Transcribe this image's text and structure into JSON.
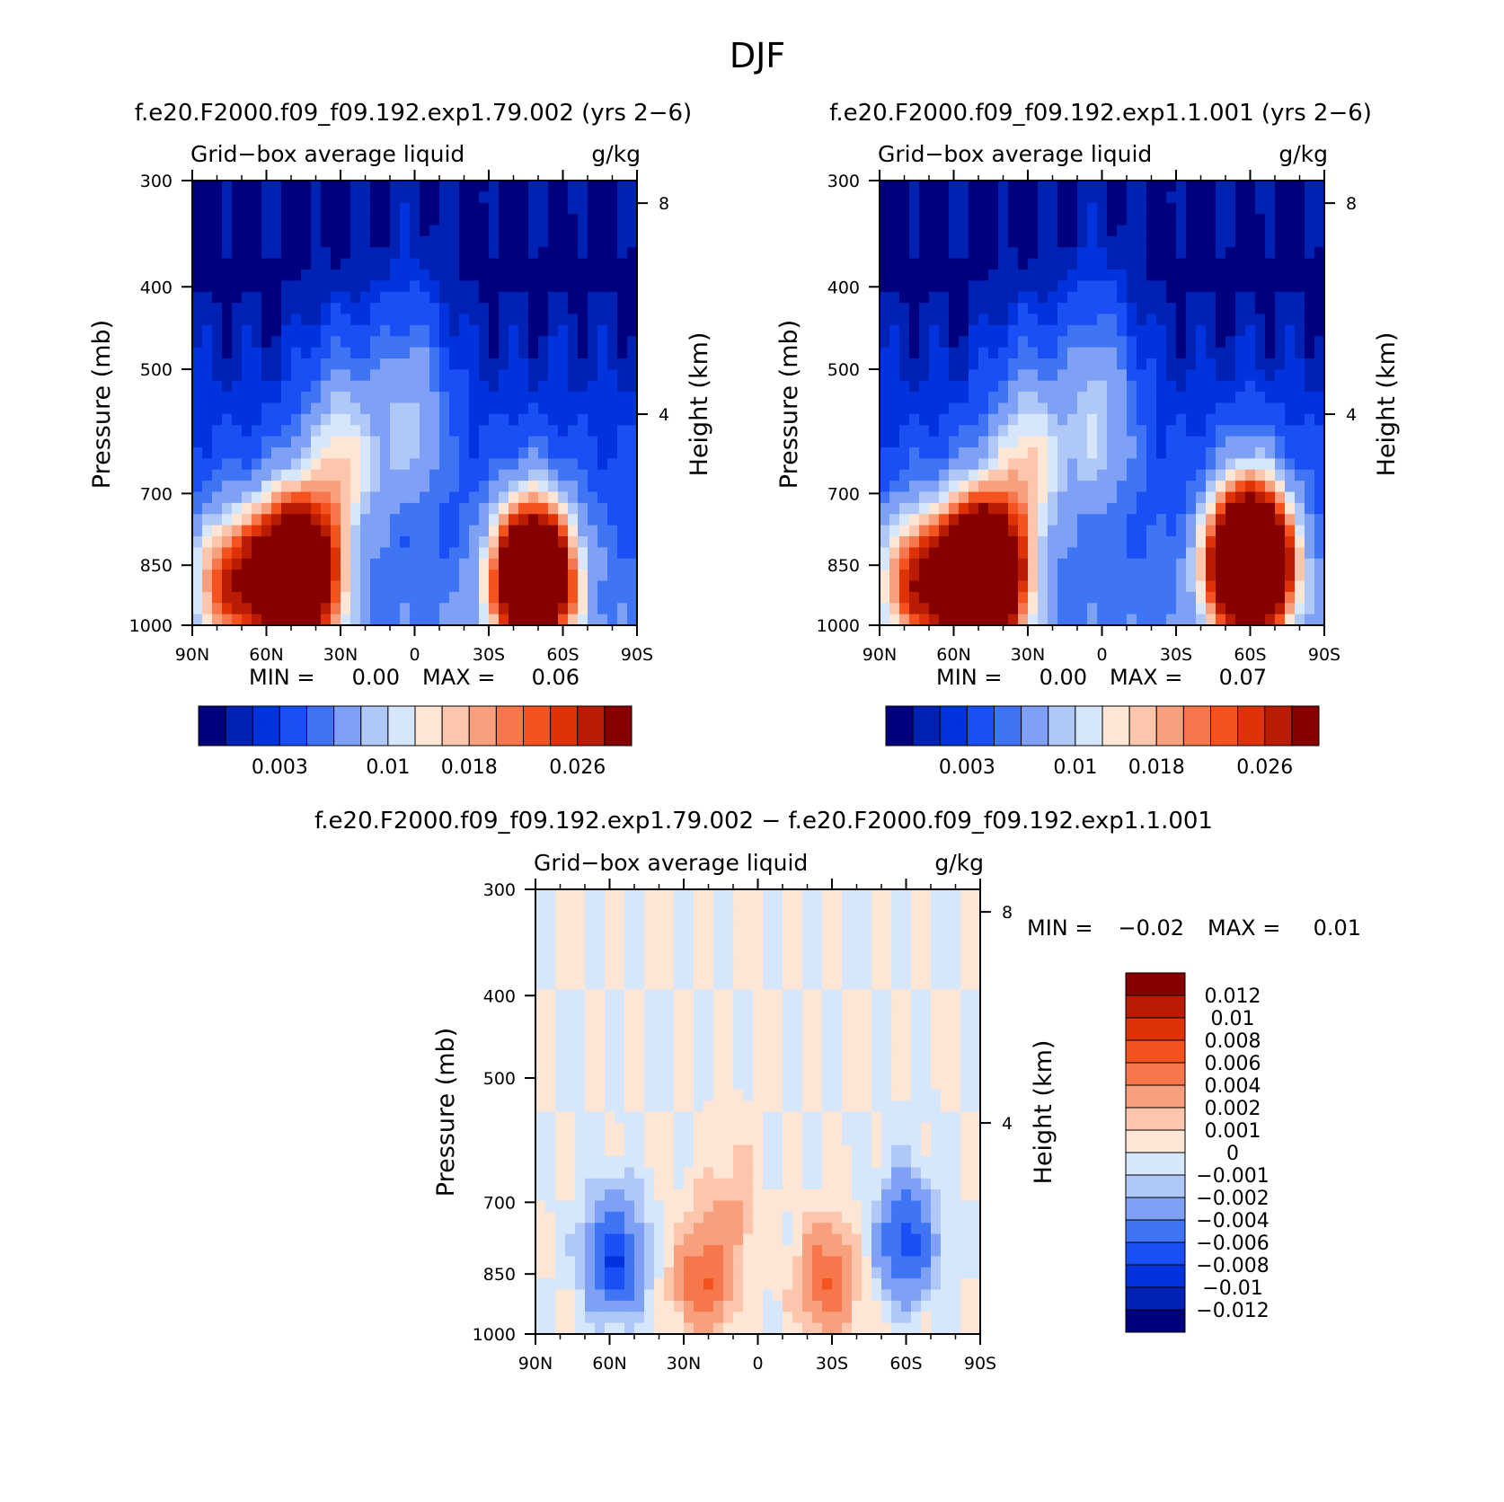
{
  "figure": {
    "title": "DJF",
    "palette_blue_red": [
      "#00007f",
      "#0022b4",
      "#0033dd",
      "#1a4ff5",
      "#3f75f5",
      "#7fa1f5",
      "#b0c8f7",
      "#d7e7fb",
      "#fde6d6",
      "#fbc6ab",
      "#f8a07e",
      "#f6774c",
      "#f4521e",
      "#e03207",
      "#b81c03",
      "#870000"
    ]
  },
  "chart_data": [
    {
      "type": "contour",
      "header": "f.e20.F2000.f09_f09.192.exp1.79.002 (yrs 2−6)",
      "variable": "Grid−box average liquid",
      "units": "g/kg",
      "ylabel": "Pressure (mb)",
      "y2label": "Height (km)",
      "x_ticks": [
        "90N",
        "60N",
        "30N",
        "0",
        "30S",
        "60S",
        "90S"
      ],
      "x_values": [
        90,
        60,
        30,
        0,
        -30,
        -60,
        -90
      ],
      "y_ticks": [
        "300",
        "400",
        "500",
        "700",
        "850",
        "1000"
      ],
      "y_values": [
        300,
        400,
        500,
        700,
        850,
        1000
      ],
      "y2_ticks": [
        "8",
        "4"
      ],
      "y2_values": [
        8,
        4
      ],
      "min_label": "MIN =",
      "min_value": "0.00",
      "max_label": "MAX =",
      "max_value": "0.06",
      "colorbar_labels": [
        "0.003",
        "0.01",
        "0.018",
        "0.026"
      ],
      "features": [
        {
          "lat": 49,
          "p": 880,
          "amplitude": 0.06
        },
        {
          "lat": 74,
          "p": 890,
          "amplitude": 0.02
        },
        {
          "lat": -48,
          "p": 880,
          "amplitude": 0.055
        },
        {
          "lat": 30,
          "p": 650,
          "amplitude": 0.012
        },
        {
          "lat": 2,
          "p": 570,
          "amplitude": 0.008
        }
      ]
    },
    {
      "type": "contour",
      "header": "f.e20.F2000.f09_f09.192.exp1.1.001 (yrs 2−6)",
      "variable": "Grid−box average liquid",
      "units": "g/kg",
      "ylabel": "Pressure (mb)",
      "y2label": "Height (km)",
      "x_ticks": [
        "90N",
        "60N",
        "30N",
        "0",
        "30S",
        "60S",
        "90S"
      ],
      "x_values": [
        90,
        60,
        30,
        0,
        -30,
        -60,
        -90
      ],
      "y_ticks": [
        "300",
        "400",
        "500",
        "700",
        "850",
        "1000"
      ],
      "y_values": [
        300,
        400,
        500,
        700,
        850,
        1000
      ],
      "y2_ticks": [
        "8",
        "4"
      ],
      "y2_values": [
        8,
        4
      ],
      "min_label": "MIN =",
      "min_value": "0.00",
      "max_label": "MAX =",
      "max_value": "0.07",
      "colorbar_labels": [
        "0.003",
        "0.01",
        "0.018",
        "0.026"
      ],
      "features": [
        {
          "lat": 49,
          "p": 880,
          "amplitude": 0.065
        },
        {
          "lat": 74,
          "p": 890,
          "amplitude": 0.022
        },
        {
          "lat": -60,
          "p": 850,
          "amplitude": 0.068
        },
        {
          "lat": 30,
          "p": 650,
          "amplitude": 0.012
        },
        {
          "lat": 2,
          "p": 570,
          "amplitude": 0.009
        }
      ]
    },
    {
      "type": "contour",
      "header": "f.e20.F2000.f09_f09.192.exp1.79.002 − f.e20.F2000.f09_f09.192.exp1.1.001",
      "variable": "Grid−box average liquid",
      "units": "g/kg",
      "ylabel": "Pressure (mb)",
      "y2label": "Height (km)",
      "x_ticks": [
        "90N",
        "60N",
        "30N",
        "0",
        "30S",
        "60S",
        "90S"
      ],
      "x_values": [
        90,
        60,
        30,
        0,
        -30,
        -60,
        -90
      ],
      "y_ticks": [
        "300",
        "400",
        "500",
        "700",
        "850",
        "1000"
      ],
      "y_values": [
        300,
        400,
        500,
        700,
        850,
        1000
      ],
      "y2_ticks": [
        "8",
        "4"
      ],
      "y2_values": [
        8,
        4
      ],
      "min_label": "MIN =",
      "min_value": "−0.02",
      "max_label": "MAX =",
      "max_value": "0.01",
      "colorbar_labels": [
        "0.012",
        "0.01",
        "0.008",
        "0.006",
        "0.004",
        "0.002",
        "0.001",
        "0",
        "−0.001",
        "−0.002",
        "−0.004",
        "−0.006",
        "−0.008",
        "−0.01",
        "−0.012"
      ],
      "features": [
        {
          "lat": 58,
          "p": 820,
          "amplitude": -0.008
        },
        {
          "lat": -60,
          "p": 780,
          "amplitude": -0.007
        },
        {
          "lat": 22,
          "p": 870,
          "amplitude": 0.006
        },
        {
          "lat": -28,
          "p": 870,
          "amplitude": 0.006
        },
        {
          "lat": 10,
          "p": 720,
          "amplitude": 0.002
        }
      ]
    }
  ]
}
